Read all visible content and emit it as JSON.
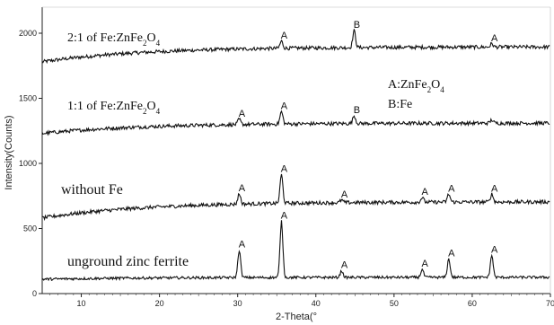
{
  "chart_data": {
    "type": "line",
    "xlabel": "2-Theta(°",
    "ylabel": "Intensity(Counts)",
    "xlim": [
      5,
      70
    ],
    "ylim": [
      0,
      2200
    ],
    "x_ticks": [
      "10",
      "20",
      "30",
      "40",
      "50",
      "60",
      "70"
    ],
    "y_ticks": [
      "0",
      "500",
      "1000",
      "1500",
      "2000"
    ],
    "grid": false,
    "series": [
      {
        "name_parts": [
          "2:1 of Fe:ZnFe",
          "2",
          "O",
          "4"
        ],
        "baseline_start": 1780,
        "baseline_end": 1895,
        "noise": 14,
        "peaks": [
          {
            "x": 35.6,
            "height": 55,
            "label": "A"
          },
          {
            "x": 44.9,
            "height": 130,
            "label": "B"
          },
          {
            "x": 62.5,
            "height": 25,
            "label": "A"
          }
        ]
      },
      {
        "name_parts": [
          "1:1 of Fe:ZnFe",
          "2",
          "O",
          "4"
        ],
        "baseline_start": 1230,
        "baseline_end": 1310,
        "noise": 14,
        "peaks": [
          {
            "x": 30.2,
            "height": 40,
            "label": "A"
          },
          {
            "x": 35.6,
            "height": 95,
            "label": "A"
          },
          {
            "x": 44.9,
            "height": 60,
            "label": "B"
          },
          {
            "x": 62.5,
            "height": 25,
            "label": ""
          }
        ]
      },
      {
        "name_parts": [
          "without Fe"
        ],
        "baseline_start": 580,
        "baseline_end": 705,
        "noise": 14,
        "peaks": [
          {
            "x": 30.2,
            "height": 80,
            "label": "A"
          },
          {
            "x": 35.6,
            "height": 220,
            "label": "A"
          },
          {
            "x": 43.3,
            "height": 20,
            "label": "A"
          },
          {
            "x": 53.6,
            "height": 35,
            "label": "A"
          },
          {
            "x": 57.0,
            "height": 60,
            "label": "A"
          },
          {
            "x": 62.5,
            "height": 60,
            "label": "A"
          }
        ]
      },
      {
        "name_parts": [
          "unground zinc ferrite"
        ],
        "baseline_start": 110,
        "baseline_end": 125,
        "noise": 10,
        "peaks": [
          {
            "x": 30.2,
            "height": 210,
            "label": "A"
          },
          {
            "x": 35.6,
            "height": 430,
            "label": "A"
          },
          {
            "x": 43.3,
            "height": 50,
            "label": "A"
          },
          {
            "x": 53.6,
            "height": 60,
            "label": "A"
          },
          {
            "x": 57.0,
            "height": 140,
            "label": "A"
          },
          {
            "x": 62.5,
            "height": 170,
            "label": "A"
          }
        ]
      }
    ],
    "legend": {
      "placement": "top-right",
      "entries": [
        {
          "key": "A:",
          "parts": [
            "ZnFe",
            "2",
            "O",
            "4"
          ]
        },
        {
          "key": "B:",
          "parts": [
            "Fe"
          ]
        }
      ]
    }
  }
}
